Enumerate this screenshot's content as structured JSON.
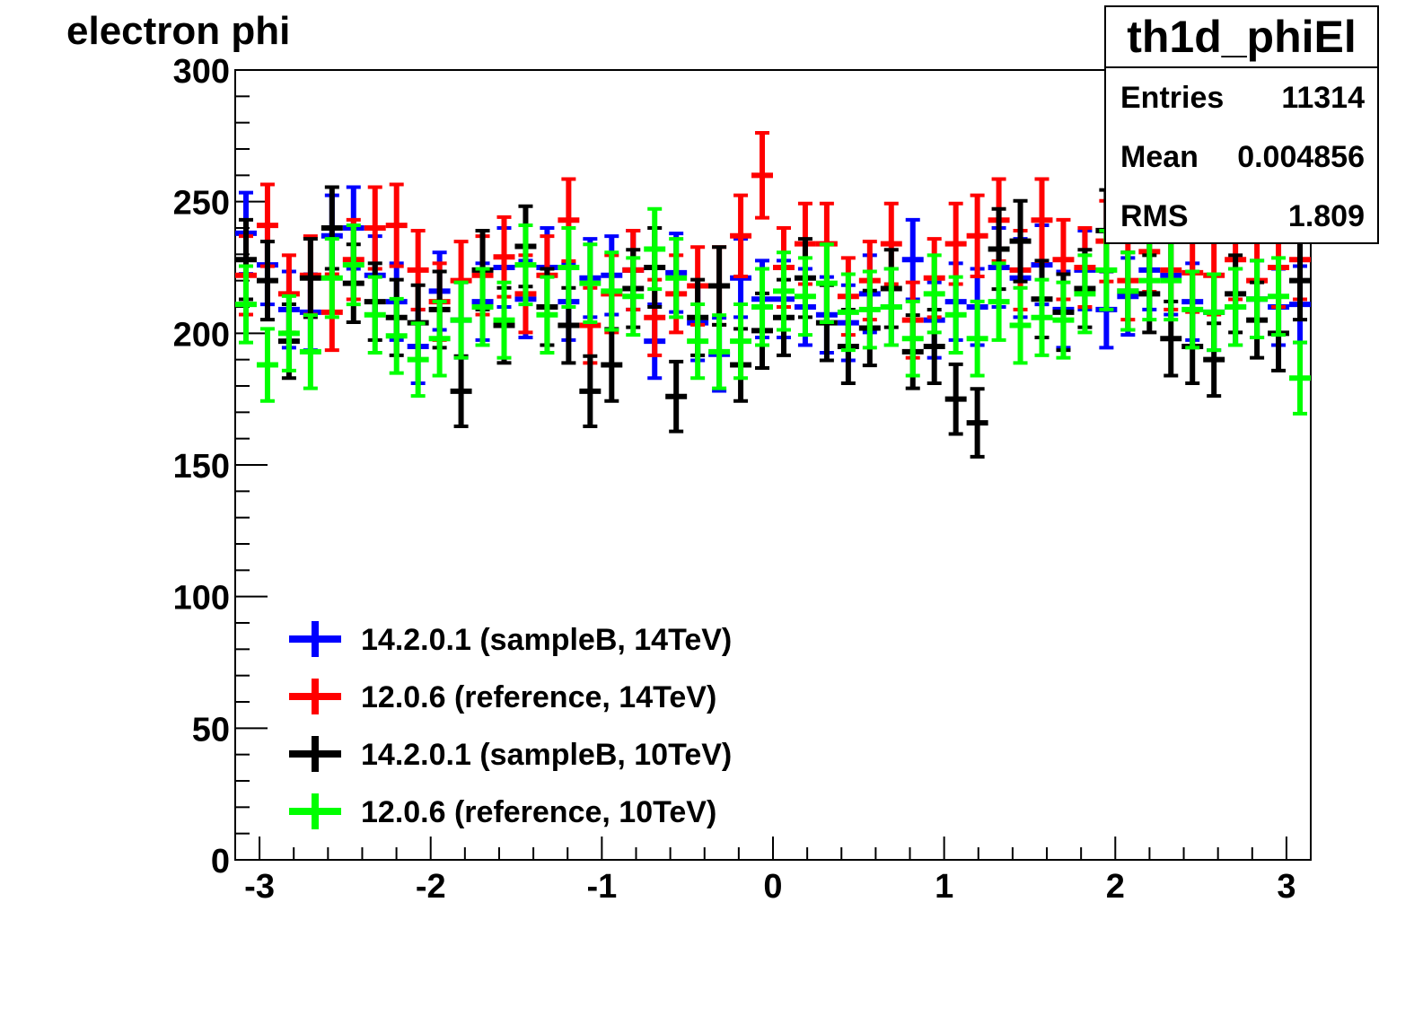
{
  "title": "electron phi",
  "stats": {
    "name": "th1d_phiEl",
    "rows": [
      {
        "label": "Entries",
        "value": "11314"
      },
      {
        "label": "Mean",
        "value": "0.004856"
      },
      {
        "label": "RMS",
        "value": "1.809"
      }
    ]
  },
  "chart_data": {
    "type": "scatter",
    "title": "electron phi",
    "xlabel": "",
    "ylabel": "",
    "xlim": [
      -3.142,
      3.142
    ],
    "ylim": [
      0,
      300
    ],
    "x_ticks": [
      -3,
      -2,
      -1,
      0,
      1,
      2,
      3
    ],
    "y_ticks": [
      0,
      50,
      100,
      150,
      200,
      250,
      300
    ],
    "bins": 50,
    "grid": false,
    "legend_position": "bottom-left",
    "series": [
      {
        "name": "14.2.0.1 (sampleB, 14TeV)",
        "color": "#0000ff",
        "values": [
          238,
          226,
          209,
          208,
          237,
          240,
          222,
          212,
          195,
          216,
          205,
          212,
          225,
          213,
          225,
          212,
          221,
          222,
          224,
          197,
          223,
          204,
          192,
          221,
          213,
          213,
          210,
          207,
          204,
          215,
          210,
          228,
          205,
          212,
          210,
          225,
          221,
          226,
          209,
          224,
          209,
          214,
          224,
          222,
          212,
          208,
          210,
          213,
          210,
          211
        ]
      },
      {
        "name": "12.0.6 (reference, 14TeV)",
        "color": "#ff0000",
        "values": [
          222,
          241,
          215,
          222,
          208,
          228,
          240,
          241,
          224,
          212,
          220,
          222,
          229,
          215,
          222,
          243,
          203,
          215,
          224,
          206,
          215,
          218,
          218,
          237,
          260,
          225,
          234,
          234,
          214,
          220,
          234,
          205,
          221,
          234,
          237,
          243,
          224,
          243,
          228,
          225,
          235,
          220,
          231,
          224,
          223,
          222,
          228,
          220,
          225,
          228
        ]
      },
      {
        "name": "14.2.0.1 (sampleB, 10TeV)",
        "color": "#000000",
        "values": [
          228,
          220,
          197,
          221,
          240,
          219,
          212,
          206,
          204,
          209,
          178,
          224,
          203,
          233,
          210,
          203,
          178,
          188,
          217,
          225,
          176,
          206,
          218,
          188,
          201,
          206,
          221,
          204,
          195,
          202,
          217,
          193,
          195,
          175,
          166,
          232,
          235,
          213,
          208,
          217,
          239,
          216,
          215,
          198,
          195,
          190,
          215,
          205,
          200,
          220
        ]
      },
      {
        "name": "12.0.6 (reference, 10TeV)",
        "color": "#00ff00",
        "values": [
          211,
          188,
          200,
          193,
          221,
          226,
          207,
          199,
          190,
          198,
          205,
          210,
          205,
          226,
          207,
          225,
          219,
          216,
          214,
          232,
          221,
          197,
          193,
          197,
          210,
          216,
          214,
          219,
          208,
          209,
          210,
          198,
          215,
          207,
          198,
          212,
          203,
          206,
          205,
          215,
          224,
          216,
          220,
          220,
          209,
          208,
          210,
          213,
          214,
          183
        ]
      }
    ]
  }
}
